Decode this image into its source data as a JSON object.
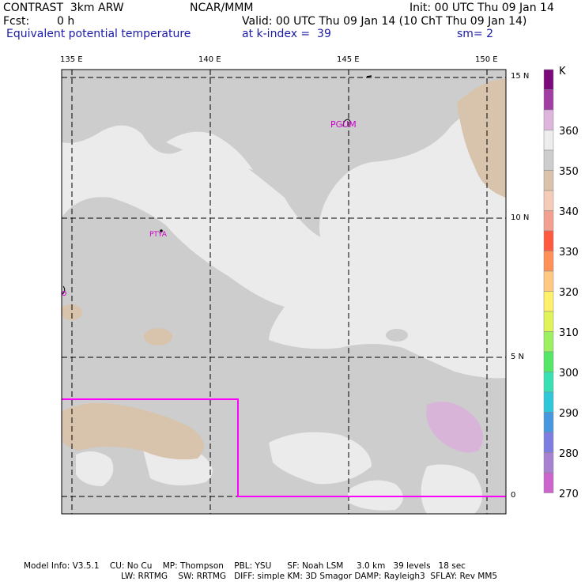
{
  "header": {
    "model": "CONTRAST  3km ARW",
    "org": "NCAR/MMM",
    "init": "Init: 00 UTC Thu 09 Jan 14",
    "fcst_label": "Fcst:",
    "fcst_value": "0 h",
    "valid": "Valid: 00 UTC Thu 09 Jan 14 (10 ChT Thu 09 Jan 14)",
    "field": "Equivalent potential temperature",
    "level": "at k-index =  39",
    "smooth": "sm= 2"
  },
  "map": {
    "lon_labels": [
      "135 E",
      "140 E",
      "145 E",
      "150 E"
    ],
    "lat_labels": [
      "15 N",
      "10 N",
      "5 N",
      "0"
    ],
    "stations": [
      "PGUM",
      "PTYA"
    ],
    "colors": {
      "lightest": "#ebebeb",
      "gray": "#cdcdcd",
      "tan": "#d8c3ad",
      "lavender": "#d9b4d9",
      "inset_box": "#ff00ff",
      "station": "#cc00cc"
    }
  },
  "colorbar": {
    "unit": "K",
    "labels": [
      "360",
      "350",
      "340",
      "330",
      "320",
      "310",
      "300",
      "290",
      "280",
      "270"
    ],
    "colors": [
      "#7b0b7b",
      "#a23ea3",
      "#ddb5dd",
      "#ededed",
      "#cdcdcd",
      "#dbc2ad",
      "#f4ccb8",
      "#f4a090",
      "#ff5a40",
      "#ff9058",
      "#ffc883",
      "#fff06a",
      "#e0f458",
      "#9cf062",
      "#55e868",
      "#38e0b4",
      "#2ec8d8",
      "#4898e0",
      "#7d7ee0",
      "#a882d0",
      "#cc66cc"
    ]
  },
  "footer": {
    "line1": "Model Info: V3.5.1    CU: No Cu    MP: Thompson    PBL: YSU      SF: Noah LSM     3.0 km   39 levels   18 sec",
    "line2": "LW: RRTMG    SW: RRTMG   DIFF: simple KM: 3D Smagor DAMP: Rayleigh3  SFLAY: Rev MM5"
  }
}
